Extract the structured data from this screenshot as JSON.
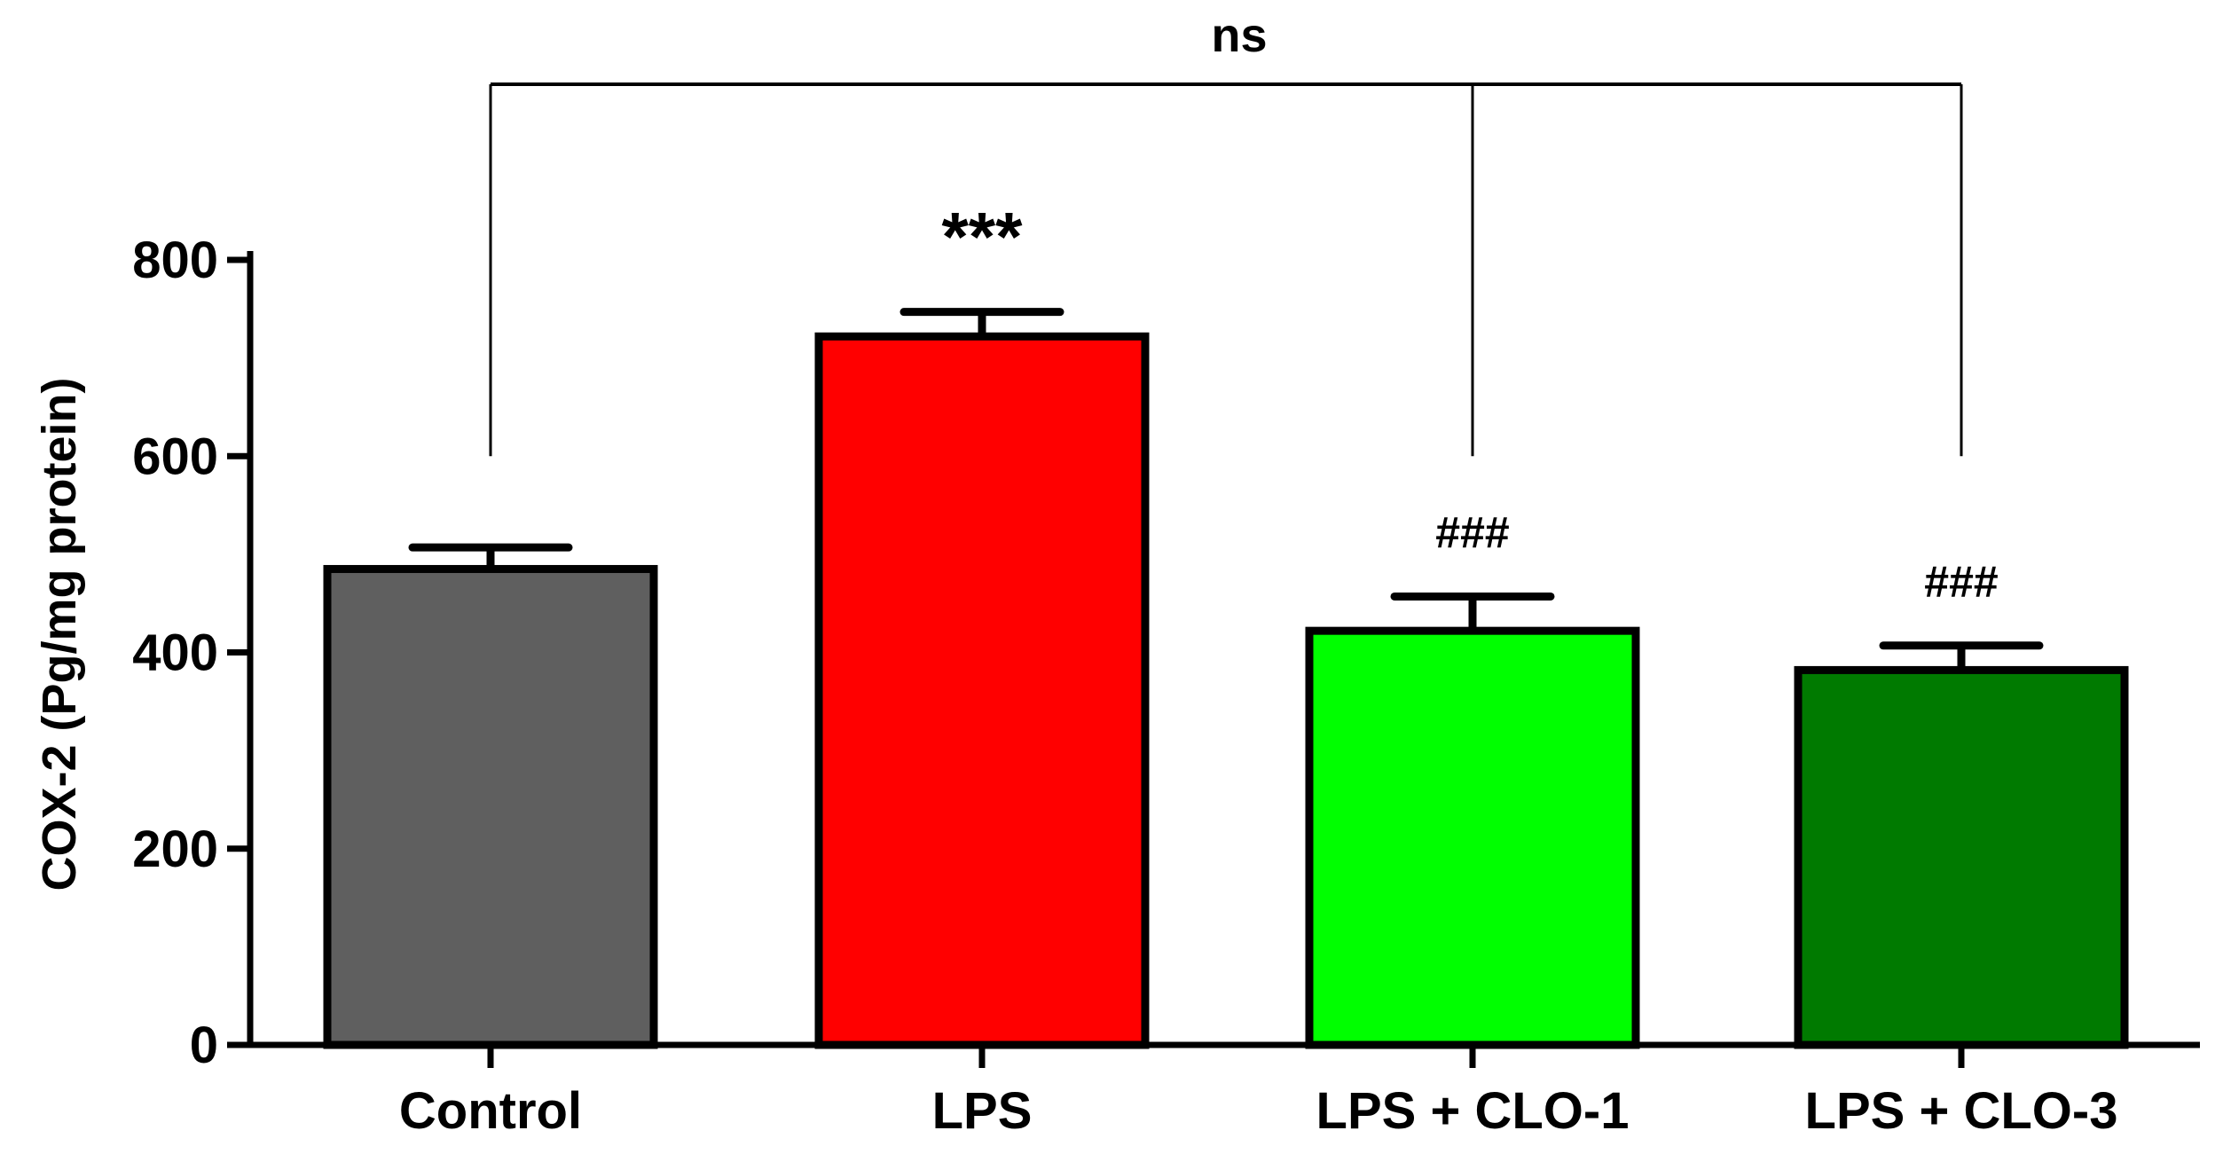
{
  "chart_data": {
    "type": "bar",
    "title": "",
    "xlabel": "",
    "ylabel": "COX-2 (Pg/mg protein)",
    "ylim": [
      0,
      800
    ],
    "yticks": [
      0,
      200,
      400,
      600,
      800
    ],
    "categories": [
      "Control",
      "LPS",
      "LPS + CLO-1",
      "LPS + CLO-3"
    ],
    "values": [
      485,
      722,
      422,
      382
    ],
    "errors": [
      22,
      25,
      35,
      25
    ],
    "colors": [
      "#5f5f5f",
      "#ff0000",
      "#00ff00",
      "#007a00"
    ],
    "annotations": [
      "",
      "***",
      "###",
      "###"
    ],
    "comparison": {
      "label": "ns",
      "from": "Control",
      "to": [
        "LPS + CLO-1",
        "LPS + CLO-3"
      ]
    },
    "grid": false,
    "legend": "none"
  }
}
